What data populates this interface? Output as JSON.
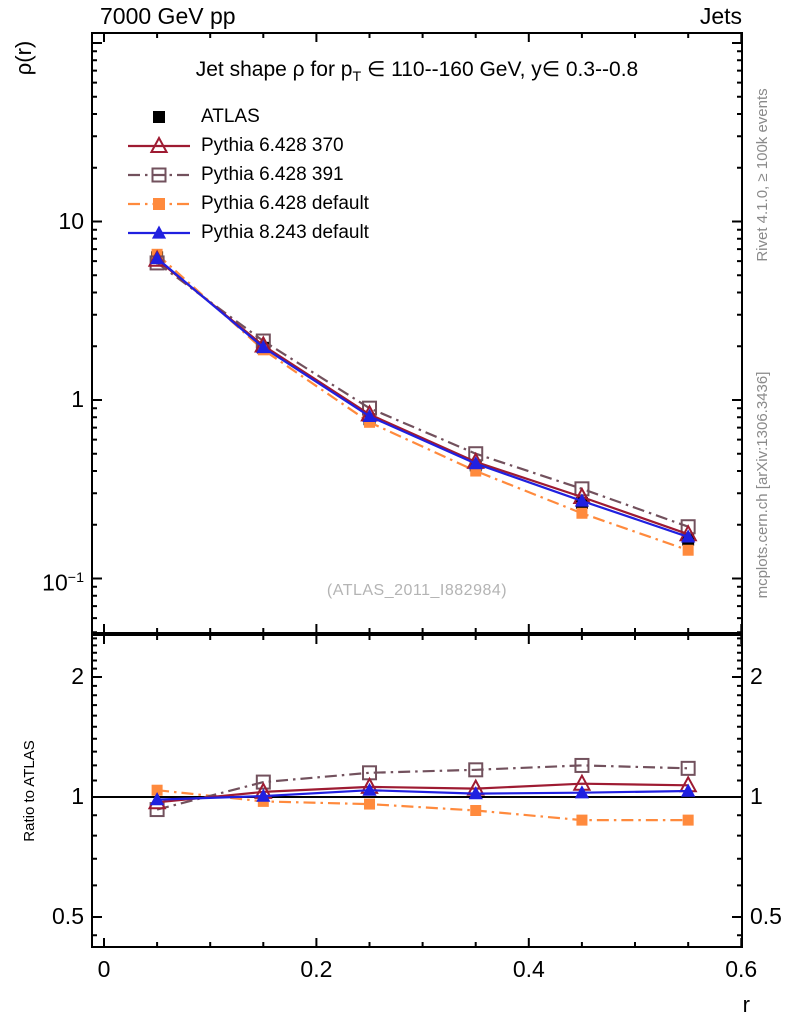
{
  "header": {
    "left": "7000 GeV pp",
    "right": "Jets"
  },
  "plot": {
    "title": {
      "pre": "Jet shape ρ for p",
      "sub": "T",
      "post": " ∈ 110--160 GeV, y∈ 0.3--0.8"
    },
    "y_label": "ρ(r)",
    "x_label": "r",
    "ratio_label": "Ratio to ATLAS",
    "watermark": "(ATLAS_2011_I882984)"
  },
  "margin_notes": {
    "right_top": "Rivet 4.1.0, ≥ 100k events",
    "right_bottom": "mcplots.cern.ch [arXiv:1306.3436]"
  },
  "colors": {
    "axis": "#000000",
    "watermark": "#b4b4b4",
    "notes": "#8a8a8a"
  },
  "chart_data": {
    "type": "line",
    "title": "Jet shape ρ for p_T ∈ 110--160 GeV, y∈ 0.3--0.8",
    "xlabel": "r",
    "ylabel": "ρ(r)",
    "ratio_ylabel": "Ratio to ATLAS",
    "x": [
      0.05,
      0.15,
      0.25,
      0.35,
      0.45,
      0.55
    ],
    "x_axis": {
      "min": -0.0113,
      "max": 0.6007,
      "major_ticks": [
        0,
        0.2,
        0.4,
        0.6
      ],
      "tick_labels": [
        "0",
        "0.2",
        "0.4",
        "0.6"
      ],
      "minor_step": 0.05
    },
    "y_axis_main": {
      "scale": "log",
      "min": 0.0496,
      "max": 113.7,
      "tick_values": [
        10,
        1,
        0.1
      ],
      "tick_labels": [
        "10",
        "1",
        "10^−1"
      ]
    },
    "y_axis_ratio": {
      "scale": "log",
      "min": 0.42,
      "max": 2.55,
      "tick_values": [
        2,
        1,
        0.5
      ],
      "tick_labels": [
        "2",
        "1",
        "0.5"
      ],
      "reference_line": 1
    },
    "reference": {
      "name": "ATLAS",
      "color": "#000000",
      "marker": "square-filled",
      "line": "none",
      "values": [
        6.3,
        1.96,
        0.78,
        0.43,
        0.265,
        0.165
      ]
    },
    "series": [
      {
        "name": "Pythia 6.428 default",
        "color": "#ff8a3d",
        "line": "dashdot",
        "marker": "square-filled",
        "values": [
          6.55,
          1.91,
          0.75,
          0.4,
          0.232,
          0.144
        ],
        "ratio": [
          1.04,
          0.975,
          0.96,
          0.925,
          0.875,
          0.875
        ]
      },
      {
        "name": "Pythia 6.428 391",
        "color": "#72515d",
        "line": "dashdot",
        "marker": "square-open",
        "values": [
          5.86,
          2.14,
          0.9,
          0.5,
          0.318,
          0.195
        ],
        "ratio": [
          0.93,
          1.09,
          1.15,
          1.17,
          1.2,
          1.18
        ]
      },
      {
        "name": "Pythia 6.428 370",
        "color": "#9e1b32",
        "line": "solid",
        "marker": "triangle-open",
        "values": [
          6.11,
          2.02,
          0.83,
          0.45,
          0.286,
          0.177
        ],
        "ratio": [
          0.97,
          1.03,
          1.06,
          1.05,
          1.08,
          1.07
        ]
      },
      {
        "name": "Pythia 8.243 default",
        "color": "#2020e0",
        "line": "solid",
        "marker": "triangle-filled",
        "values": [
          6.21,
          1.97,
          0.81,
          0.44,
          0.272,
          0.171
        ],
        "ratio": [
          0.985,
          1.005,
          1.04,
          1.02,
          1.025,
          1.035
        ]
      }
    ],
    "legend_order": [
      "ATLAS",
      "Pythia 6.428 370",
      "Pythia 6.428 391",
      "Pythia 6.428 default",
      "Pythia 8.243 default"
    ],
    "legend_position": "top-left-inside",
    "grid": false
  }
}
